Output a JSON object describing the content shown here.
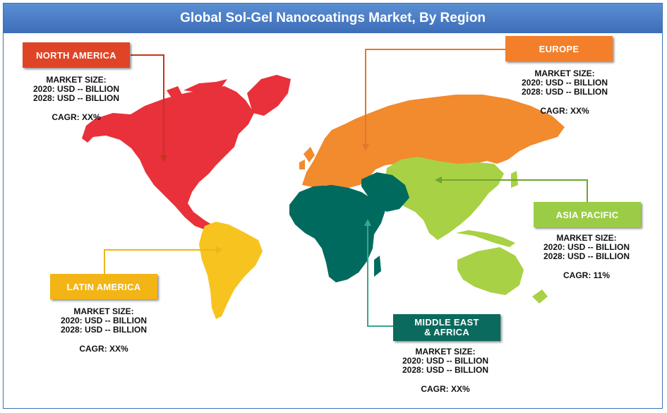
{
  "title": "Global Sol-Gel Nanocoatings Market, By Region",
  "colors": {
    "title_bg": "#4a7cc4",
    "north_america": "#e8313a",
    "europe": "#f28a2e",
    "asia_pacific": "#a9d145",
    "middle_east_africa": "#006a5e",
    "latin_america": "#f7c31e",
    "north_america_tag": "#e04427",
    "europe_tag": "#f37f2a",
    "asia_pacific_tag": "#9acd45",
    "mea_tag": "#0a6a5d",
    "latin_america_tag": "#f2b515"
  },
  "regions": {
    "north_america": {
      "label": "NORTH AMERICA",
      "market_size": "MARKET SIZE:",
      "y2020": "2020: USD -- BILLION",
      "y2028": "2028: USD -- BILLION",
      "cagr": "CAGR: XX%"
    },
    "europe": {
      "label": "EUROPE",
      "market_size": "MARKET SIZE:",
      "y2020": "2020: USD -- BILLION",
      "y2028": "2028: USD -- BILLION",
      "cagr": "CAGR: XX%"
    },
    "asia_pacific": {
      "label": "ASIA PACIFIC",
      "market_size": "MARKET SIZE:",
      "y2020": "2020: USD -- BILLION",
      "y2028": "2028: USD -- BILLION",
      "cagr": "CAGR: 11%"
    },
    "latin_america": {
      "label": "LATIN AMERICA",
      "market_size": "MARKET SIZE:",
      "y2020": "2020: USD -- BILLION",
      "y2028": "2028: USD -- BILLION",
      "cagr": "CAGR: XX%"
    },
    "middle_east_africa": {
      "label_line1": "MIDDLE EAST",
      "label_line2": "& AFRICA",
      "market_size": "MARKET SIZE:",
      "y2020": "2020: USD -- BILLION",
      "y2028": "2028: USD -- BILLION",
      "cagr": "CAGR: XX%"
    }
  }
}
